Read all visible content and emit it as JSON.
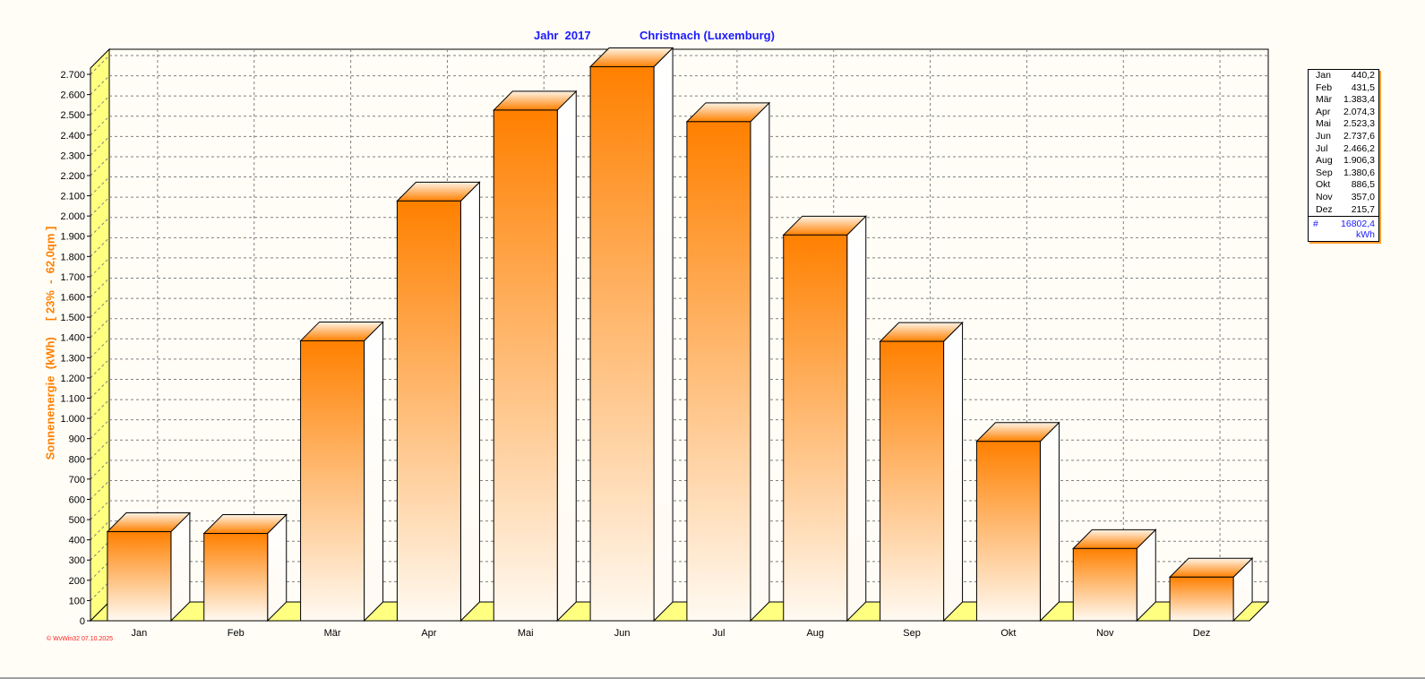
{
  "chart_data": {
    "type": "bar",
    "title_year": "Jahr  2017",
    "title_location": "Christnach (Luxemburg)",
    "ylabel": "Sonnenenergie  (kWh)     [ 23%  -  62,0qm ]",
    "categories": [
      "Jan",
      "Feb",
      "Mär",
      "Apr",
      "Mai",
      "Jun",
      "Jul",
      "Aug",
      "Sep",
      "Okt",
      "Nov",
      "Dez"
    ],
    "values": [
      440.2,
      431.5,
      1383.4,
      2074.3,
      2523.3,
      2737.6,
      2466.2,
      1906.3,
      1380.6,
      886.5,
      357.0,
      215.7
    ],
    "ylim": [
      0,
      2800
    ],
    "ytick_step": 100,
    "grid": true,
    "colors": {
      "bar_top": "#ff8000",
      "bar_bottom": "#fffaf2",
      "floor": "#ffff80",
      "grid": "#808080"
    }
  },
  "legend": {
    "rows": [
      {
        "month": "Jan",
        "value": "440,2"
      },
      {
        "month": "Feb",
        "value": "431,5"
      },
      {
        "month": "Mär",
        "value": "1.383,4"
      },
      {
        "month": "Apr",
        "value": "2.074,3"
      },
      {
        "month": "Mai",
        "value": "2.523,3"
      },
      {
        "month": "Jun",
        "value": "2.737,6"
      },
      {
        "month": "Jul",
        "value": "2.466,2"
      },
      {
        "month": "Aug",
        "value": "1.906,3"
      },
      {
        "month": "Sep",
        "value": "1.380,6"
      },
      {
        "month": "Okt",
        "value": "886,5"
      },
      {
        "month": "Nov",
        "value": "357,0"
      },
      {
        "month": "Dez",
        "value": "215,7"
      }
    ],
    "total_symbol": "#",
    "total_value": "16802,4",
    "total_unit": "kWh"
  },
  "footer": "© WvWin32  07.10.2025"
}
